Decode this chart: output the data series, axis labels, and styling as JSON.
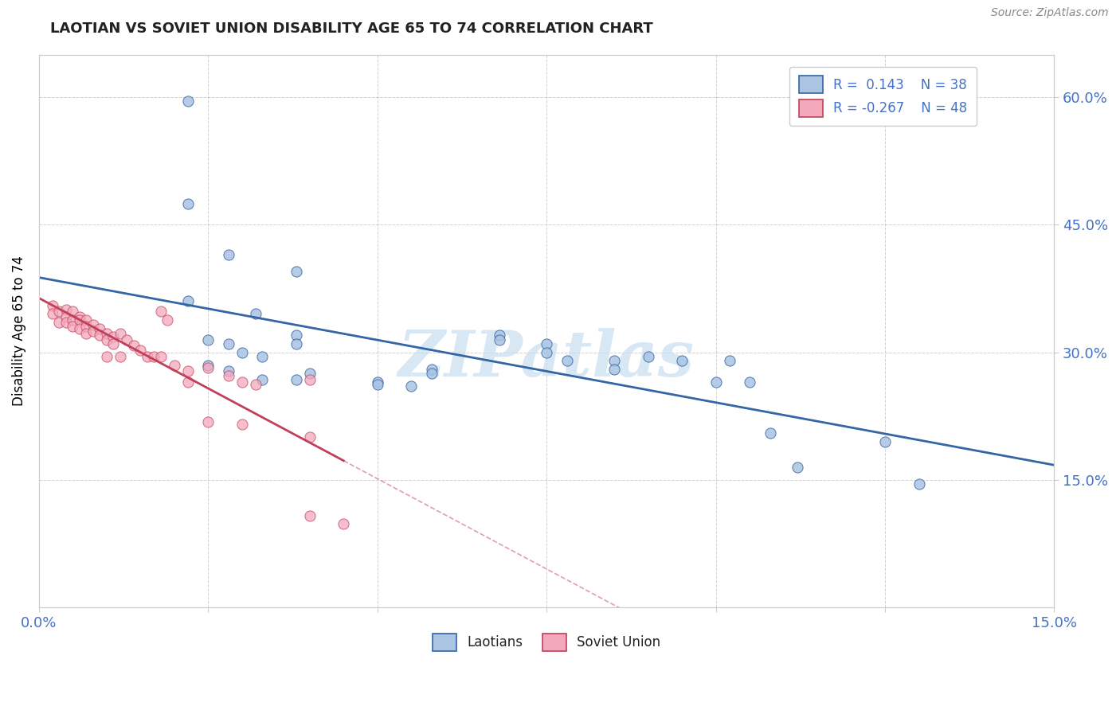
{
  "title": "LAOTIAN VS SOVIET UNION DISABILITY AGE 65 TO 74 CORRELATION CHART",
  "source_text": "Source: ZipAtlas.com",
  "ylabel": "Disability Age 65 to 74",
  "xmin": 0.0,
  "xmax": 0.15,
  "ymin": 0.0,
  "ymax": 0.65,
  "watermark": "ZIPatlas",
  "legend_r1": "R =  0.143",
  "legend_n1": "N = 38",
  "legend_r2": "R = -0.267",
  "legend_n2": "N = 48",
  "laotian_color": "#aac4e2",
  "soviet_color": "#f4a8bc",
  "laotian_line_color": "#3465a4",
  "soviet_line_color": "#c0405a",
  "laotian_scatter": [
    [
      0.022,
      0.595
    ],
    [
      0.022,
      0.475
    ],
    [
      0.028,
      0.415
    ],
    [
      0.038,
      0.395
    ],
    [
      0.022,
      0.36
    ],
    [
      0.032,
      0.345
    ],
    [
      0.038,
      0.32
    ],
    [
      0.025,
      0.315
    ],
    [
      0.028,
      0.31
    ],
    [
      0.038,
      0.31
    ],
    [
      0.03,
      0.3
    ],
    [
      0.033,
      0.295
    ],
    [
      0.025,
      0.285
    ],
    [
      0.028,
      0.278
    ],
    [
      0.04,
      0.275
    ],
    [
      0.033,
      0.268
    ],
    [
      0.038,
      0.268
    ],
    [
      0.05,
      0.265
    ],
    [
      0.05,
      0.262
    ],
    [
      0.055,
      0.26
    ],
    [
      0.058,
      0.28
    ],
    [
      0.058,
      0.275
    ],
    [
      0.068,
      0.32
    ],
    [
      0.068,
      0.315
    ],
    [
      0.075,
      0.31
    ],
    [
      0.075,
      0.3
    ],
    [
      0.078,
      0.29
    ],
    [
      0.085,
      0.29
    ],
    [
      0.085,
      0.28
    ],
    [
      0.09,
      0.295
    ],
    [
      0.095,
      0.29
    ],
    [
      0.1,
      0.265
    ],
    [
      0.102,
      0.29
    ],
    [
      0.105,
      0.265
    ],
    [
      0.108,
      0.205
    ],
    [
      0.112,
      0.165
    ],
    [
      0.125,
      0.195
    ],
    [
      0.13,
      0.145
    ]
  ],
  "soviet_scatter": [
    [
      0.002,
      0.355
    ],
    [
      0.002,
      0.345
    ],
    [
      0.003,
      0.348
    ],
    [
      0.003,
      0.335
    ],
    [
      0.004,
      0.35
    ],
    [
      0.004,
      0.342
    ],
    [
      0.004,
      0.335
    ],
    [
      0.005,
      0.348
    ],
    [
      0.005,
      0.338
    ],
    [
      0.005,
      0.33
    ],
    [
      0.006,
      0.342
    ],
    [
      0.006,
      0.338
    ],
    [
      0.006,
      0.328
    ],
    [
      0.007,
      0.338
    ],
    [
      0.007,
      0.33
    ],
    [
      0.007,
      0.322
    ],
    [
      0.008,
      0.332
    ],
    [
      0.008,
      0.325
    ],
    [
      0.009,
      0.328
    ],
    [
      0.009,
      0.32
    ],
    [
      0.01,
      0.322
    ],
    [
      0.01,
      0.315
    ],
    [
      0.011,
      0.318
    ],
    [
      0.011,
      0.31
    ],
    [
      0.012,
      0.322
    ],
    [
      0.013,
      0.315
    ],
    [
      0.014,
      0.308
    ],
    [
      0.015,
      0.302
    ],
    [
      0.016,
      0.295
    ],
    [
      0.017,
      0.295
    ],
    [
      0.018,
      0.295
    ],
    [
      0.02,
      0.285
    ],
    [
      0.022,
      0.278
    ],
    [
      0.022,
      0.265
    ],
    [
      0.025,
      0.282
    ],
    [
      0.028,
      0.272
    ],
    [
      0.03,
      0.265
    ],
    [
      0.032,
      0.262
    ],
    [
      0.018,
      0.348
    ],
    [
      0.019,
      0.338
    ],
    [
      0.01,
      0.295
    ],
    [
      0.012,
      0.295
    ],
    [
      0.04,
      0.268
    ],
    [
      0.04,
      0.108
    ],
    [
      0.04,
      0.2
    ],
    [
      0.045,
      0.098
    ],
    [
      0.025,
      0.218
    ],
    [
      0.03,
      0.215
    ]
  ],
  "background_color": "#ffffff",
  "grid_color": "#cccccc"
}
